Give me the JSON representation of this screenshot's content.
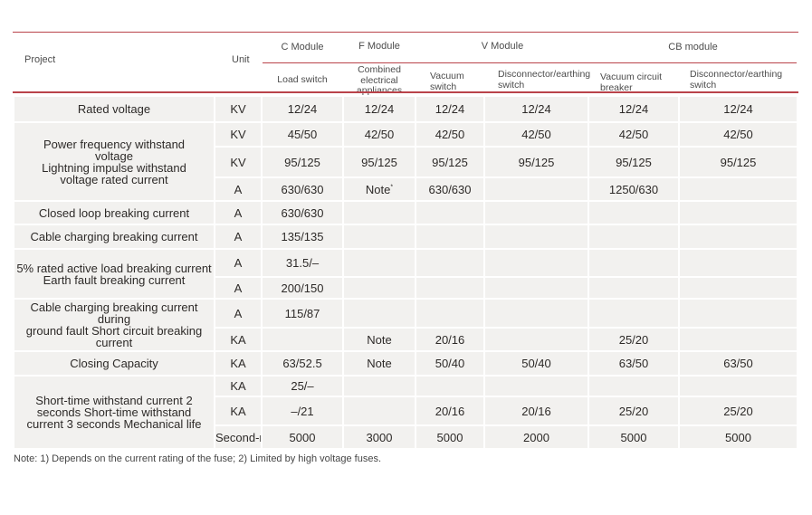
{
  "colors": {
    "line_red": "#b9434a",
    "row_bg": "#f2f1ef"
  },
  "table": {
    "header": {
      "project": "Project",
      "unit": "Unit",
      "groups": [
        {
          "label": "C Module",
          "cols": [
            "Load switch"
          ]
        },
        {
          "label": "F Module",
          "cols": [
            "Combined\nelectrical\nappliances"
          ]
        },
        {
          "label": "V Module",
          "cols": [
            "Vacuum\nswitch",
            "Disconnector/earthing\nswitch"
          ]
        },
        {
          "label": "CB module",
          "cols": [
            "Vacuum circuit\nbreaker",
            "Disconnector/earthing\nswitch"
          ]
        }
      ]
    },
    "rows": [
      {
        "project": "Rated voltage",
        "span": 1,
        "unit": "KV",
        "values": [
          "12/24",
          "12/24",
          "12/24",
          "12/24",
          "12/24",
          "12/24"
        ]
      },
      {
        "project": "Power frequency withstand\nvoltage\nLightning impulse withstand\nvoltage rated current",
        "span": 3,
        "unit": "KV",
        "values": [
          "45/50",
          "42/50",
          "42/50",
          "42/50",
          "42/50",
          "42/50"
        ]
      },
      {
        "unit": "KV",
        "values": [
          "95/125",
          "95/125",
          "95/125",
          "95/125",
          "95/125",
          "95/125"
        ]
      },
      {
        "unit": "A",
        "values": [
          "630/630",
          "Note*",
          "630/630",
          "",
          "1250/630",
          ""
        ]
      },
      {
        "project": "Closed loop breaking current",
        "span": 1,
        "unit": "A",
        "values": [
          "630/630",
          "",
          "",
          "",
          "",
          ""
        ]
      },
      {
        "project": "Cable charging breaking current",
        "span": 1,
        "unit": "A",
        "values": [
          "135/135",
          "",
          "",
          "",
          "",
          ""
        ]
      },
      {
        "project": "5% rated active load breaking current\nEarth fault breaking current",
        "span": 2,
        "unit": "A",
        "values": [
          "31.5/–",
          "",
          "",
          "",
          "",
          ""
        ]
      },
      {
        "unit": "A",
        "values": [
          "200/150",
          "",
          "",
          "",
          "",
          ""
        ]
      },
      {
        "project": "Cable charging breaking current during\nground fault Short circuit breaking current",
        "span": 2,
        "unit": "A",
        "values": [
          "115/87",
          "",
          "",
          "",
          "",
          ""
        ]
      },
      {
        "unit": "KA",
        "values": [
          "",
          "Note",
          "20/16",
          "",
          "25/20",
          ""
        ]
      },
      {
        "project": "Closing Capacity",
        "span": 1,
        "unit": "KA",
        "values": [
          "63/52.5",
          "Note",
          "50/40",
          "50/40",
          "63/50",
          "63/50"
        ]
      },
      {
        "project": "Short-time withstand current 2\nseconds Short-time withstand\ncurrent 3 seconds Mechanical life",
        "span": 3,
        "unit": "KA",
        "values": [
          "25/–",
          "",
          "",
          "",
          "",
          ""
        ]
      },
      {
        "unit": "KA",
        "values": [
          "–/21",
          "",
          "20/16",
          "20/16",
          "25/20",
          "25/20"
        ]
      },
      {
        "unit": "Second-rate",
        "unit_small": true,
        "values": [
          "5000",
          "3000",
          "5000",
          "2000",
          "5000",
          "5000"
        ]
      }
    ],
    "note": "Note: 1) Depends on the current rating of the fuse; 2) Limited by high voltage fuses."
  }
}
